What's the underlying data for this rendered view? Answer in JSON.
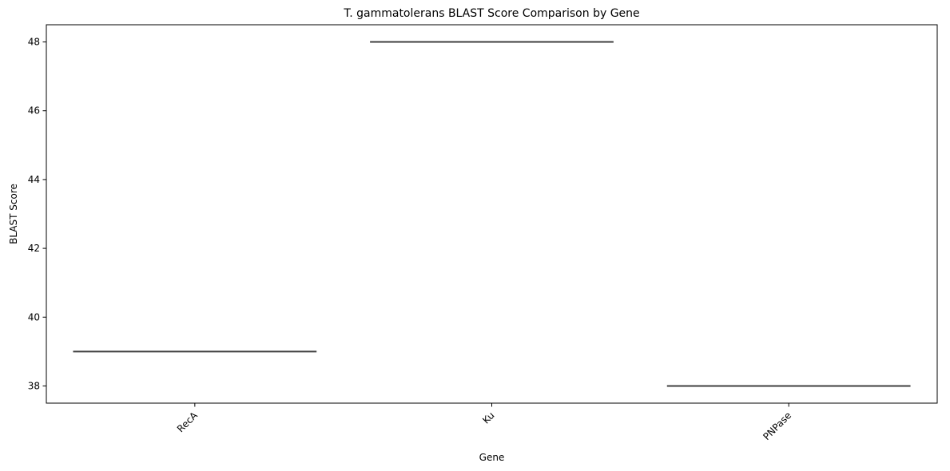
{
  "chart_data": {
    "type": "box",
    "title": "T. gammatolerans BLAST Score Comparison by Gene",
    "xlabel": "Gene",
    "ylabel": "BLAST Score",
    "categories": [
      "RecA",
      "Ku",
      "PNPase"
    ],
    "values": [
      39,
      48,
      38
    ],
    "ylim": [
      37.5,
      48.5
    ],
    "yticks": [
      38,
      40,
      42,
      44,
      46,
      48
    ],
    "xtick_rotation": 45,
    "grid": false,
    "legend": "none",
    "box_color": "#3f3f3f"
  }
}
